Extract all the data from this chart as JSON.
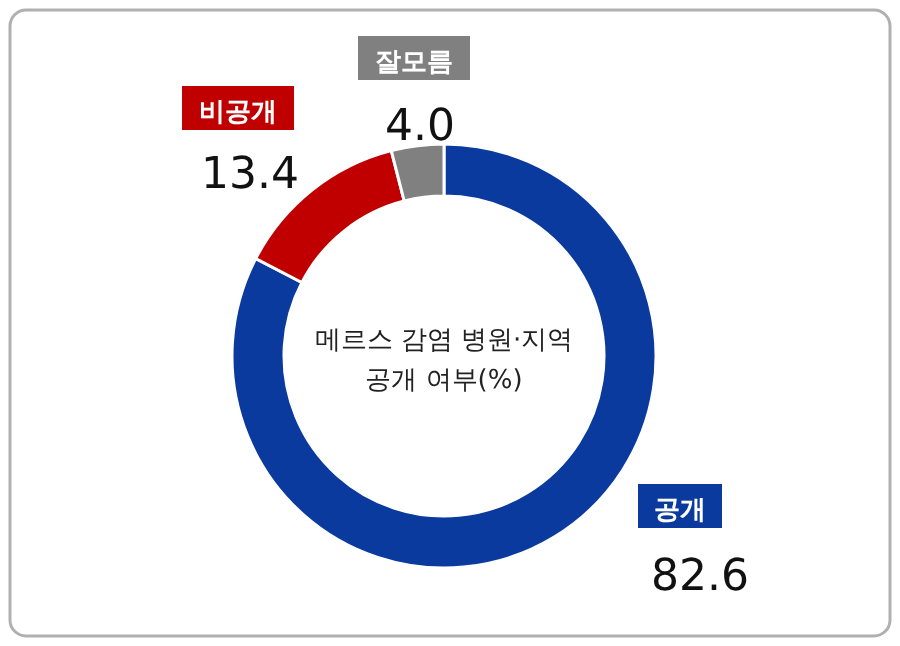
{
  "chart_data": {
    "type": "donut",
    "title": "메르스 감염 병원·지역 공개 여부(%)",
    "categories": [
      "공개",
      "비공개",
      "잘모름"
    ],
    "values": [
      82.6,
      13.4,
      4.0
    ],
    "value_labels": [
      "82.6",
      "13.4",
      "4.0"
    ],
    "colors": [
      "#0a3a9e",
      "#c00000",
      "#808080"
    ]
  }
}
